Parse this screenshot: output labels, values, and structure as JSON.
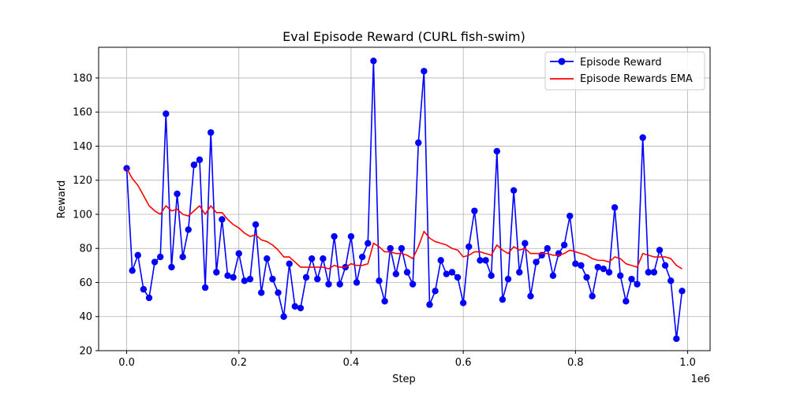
{
  "chart_data": {
    "type": "line",
    "title": "Eval Episode Reward (CURL fish-swim)",
    "xlabel": "Step",
    "ylabel": "Reward",
    "x_offset_text": "1e6",
    "xlim": [
      -50000,
      1040000
    ],
    "ylim": [
      20,
      198
    ],
    "x_ticks": [
      0,
      200000,
      400000,
      600000,
      800000,
      1000000
    ],
    "x_tick_labels": [
      "0.0",
      "0.2",
      "0.4",
      "0.6",
      "0.8",
      "1.0"
    ],
    "y_ticks": [
      20,
      40,
      60,
      80,
      100,
      120,
      140,
      160,
      180
    ],
    "y_tick_labels": [
      "20",
      "40",
      "60",
      "80",
      "100",
      "120",
      "140",
      "160",
      "180"
    ],
    "grid": true,
    "legend_position": "top-right",
    "x": [
      0,
      10000,
      20000,
      30000,
      40000,
      50000,
      60000,
      70000,
      80000,
      90000,
      100000,
      110000,
      120000,
      130000,
      140000,
      150000,
      160000,
      170000,
      180000,
      190000,
      200000,
      210000,
      220000,
      230000,
      240000,
      250000,
      260000,
      270000,
      280000,
      290000,
      300000,
      310000,
      320000,
      330000,
      340000,
      350000,
      360000,
      370000,
      380000,
      390000,
      400000,
      410000,
      420000,
      430000,
      440000,
      450000,
      460000,
      470000,
      480000,
      490000,
      500000,
      510000,
      520000,
      530000,
      540000,
      550000,
      560000,
      570000,
      580000,
      590000,
      600000,
      610000,
      620000,
      630000,
      640000,
      650000,
      660000,
      670000,
      680000,
      690000,
      700000,
      710000,
      720000,
      730000,
      740000,
      750000,
      760000,
      770000,
      780000,
      790000,
      800000,
      810000,
      820000,
      830000,
      840000,
      850000,
      860000,
      870000,
      880000,
      890000,
      900000,
      910000,
      920000,
      930000,
      940000,
      950000,
      960000,
      970000,
      980000,
      990000
    ],
    "series": [
      {
        "name": "Episode Reward",
        "color": "#0000ff",
        "marker": "circle",
        "values": [
          127,
          67,
          76,
          56,
          51,
          72,
          75,
          159,
          69,
          112,
          75,
          91,
          129,
          132,
          57,
          148,
          66,
          97,
          64,
          63,
          77,
          61,
          62,
          94,
          54,
          74,
          62,
          54,
          40,
          71,
          46,
          45,
          63,
          74,
          62,
          74,
          59,
          87,
          59,
          69,
          87,
          60,
          75,
          83,
          190,
          61,
          49,
          80,
          65,
          80,
          66,
          59,
          142,
          184,
          47,
          55,
          73,
          65,
          66,
          63,
          48,
          81,
          102,
          73,
          73,
          64,
          137,
          50,
          62,
          114,
          66,
          83,
          52,
          72,
          76,
          80,
          64,
          77,
          82,
          99,
          71,
          70,
          63,
          52,
          69,
          68,
          66,
          104,
          64,
          49,
          62,
          59,
          145,
          66,
          66,
          79,
          70,
          61,
          27,
          55
        ]
      },
      {
        "name": "Episode Rewards EMA",
        "color": "#ff0000",
        "marker": "none",
        "values": [
          127,
          121,
          117,
          111,
          105,
          102,
          100,
          105,
          102,
          103,
          100,
          99,
          102,
          105,
          100,
          105,
          101,
          101,
          97,
          94,
          92,
          89,
          87,
          88,
          85,
          84,
          82,
          79,
          75,
          75,
          72,
          69,
          69,
          69,
          69,
          69,
          68,
          70,
          69,
          69,
          71,
          70,
          70,
          71,
          83,
          81,
          78,
          78,
          77,
          77,
          76,
          74,
          81,
          90,
          86,
          84,
          83,
          82,
          80,
          79,
          75,
          76,
          78,
          78,
          77,
          76,
          82,
          79,
          77,
          81,
          79,
          80,
          77,
          77,
          77,
          77,
          76,
          76,
          77,
          79,
          78,
          77,
          76,
          74,
          73,
          73,
          72,
          75,
          74,
          71,
          70,
          69,
          77,
          76,
          75,
          75,
          75,
          74,
          70,
          68
        ]
      }
    ]
  }
}
